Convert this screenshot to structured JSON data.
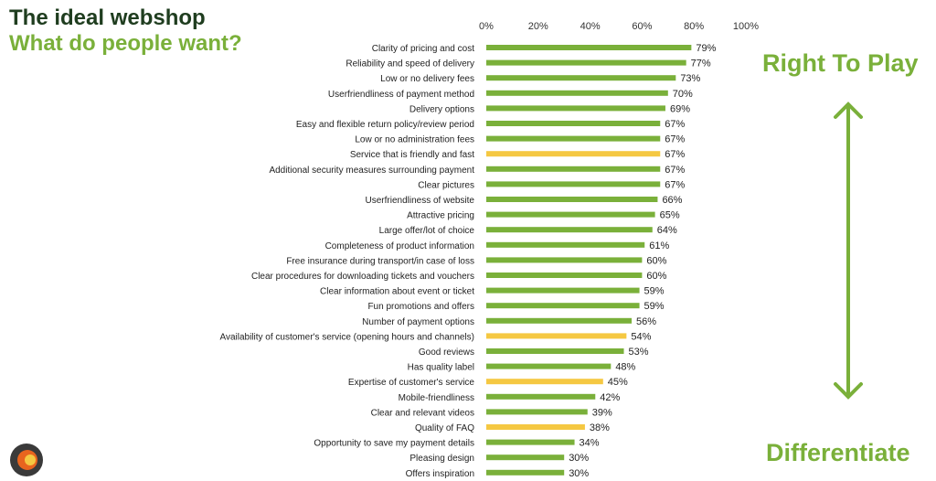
{
  "header": {
    "title": "The ideal webshop",
    "subtitle": "What do people want?"
  },
  "annotations": {
    "top": "Right To Play",
    "bottom": "Differentiate"
  },
  "colors": {
    "green": "#7ab03a",
    "yellow": "#f5c842",
    "dark_title": "#1f3d1f"
  },
  "chart_data": {
    "type": "bar",
    "orientation": "horizontal",
    "xlim": [
      0,
      100
    ],
    "x_ticks": [
      "0%",
      "20%",
      "40%",
      "60%",
      "80%",
      "100%"
    ],
    "categories": [
      "Clarity of pricing and cost",
      "Reliability and speed of delivery",
      "Low or no delivery fees",
      "Userfriendliness of payment method",
      "Delivery options",
      "Easy and flexible return policy/review period",
      "Low or no administration fees",
      "Service that is friendly and fast",
      "Additional security measures surrounding payment",
      "Clear pictures",
      "Userfriendliness of website",
      "Attractive pricing",
      "Large offer/lot of choice",
      "Completeness of product information",
      "Free insurance during transport/in case of loss",
      "Clear procedures for downloading tickets and vouchers",
      "Clear information about event or ticket",
      "Fun promotions and offers",
      "Number of payment options",
      "Availability of customer's service (opening hours and channels)",
      "Good reviews",
      "Has quality label",
      "Expertise of customer's service",
      "Mobile-friendliness",
      "Clear and relevant videos",
      "Quality of FAQ",
      "Opportunity to save my payment details",
      "Pleasing design",
      "Offers inspiration"
    ],
    "values": [
      79,
      77,
      73,
      70,
      69,
      67,
      67,
      67,
      67,
      67,
      66,
      65,
      64,
      61,
      60,
      60,
      59,
      59,
      56,
      54,
      53,
      48,
      45,
      42,
      39,
      38,
      34,
      30,
      30
    ],
    "labels": [
      "79%",
      "77%",
      "73%",
      "70%",
      "69%",
      "67%",
      "67%",
      "67%",
      "67%",
      "67%",
      "66%",
      "65%",
      "64%",
      "61%",
      "60%",
      "60%",
      "59%",
      "59%",
      "56%",
      "54%",
      "53%",
      "48%",
      "45%",
      "42%",
      "39%",
      "38%",
      "34%",
      "30%",
      "30%"
    ],
    "highlight": [
      false,
      false,
      false,
      false,
      false,
      false,
      false,
      true,
      false,
      false,
      false,
      false,
      false,
      false,
      false,
      false,
      false,
      false,
      false,
      true,
      false,
      false,
      true,
      false,
      false,
      true,
      false,
      false,
      false
    ]
  }
}
